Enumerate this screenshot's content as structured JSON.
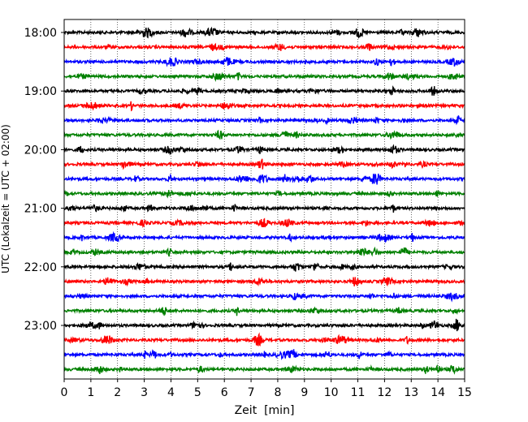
{
  "chart_data": {
    "type": "line",
    "subtype": "helicorder",
    "xlabel": "Zeit  [min]",
    "ylabel": "UTC (Lokalzeit = UTC + 02:00)",
    "xlim": [
      0,
      15
    ],
    "x_ticks": [
      0,
      1,
      2,
      3,
      4,
      5,
      6,
      7,
      8,
      9,
      10,
      11,
      12,
      13,
      14,
      15
    ],
    "x_tick_labels": [
      "0",
      "1",
      "2",
      "3",
      "4",
      "5",
      "6",
      "7",
      "8",
      "9",
      "10",
      "11",
      "12",
      "13",
      "14",
      "15"
    ],
    "grid": "vertical dotted",
    "row_interval_min": 15,
    "y_tick_labels": [
      "18:00",
      "19:00",
      "20:00",
      "21:00",
      "22:00",
      "23:00"
    ],
    "trace_colors": [
      "#000000",
      "#ff0000",
      "#0000ff",
      "#008000"
    ],
    "rows": [
      {
        "start": "18:00",
        "color": "#000000"
      },
      {
        "start": "18:15",
        "color": "#ff0000"
      },
      {
        "start": "18:30",
        "color": "#0000ff"
      },
      {
        "start": "18:45",
        "color": "#008000"
      },
      {
        "start": "19:00",
        "color": "#000000"
      },
      {
        "start": "19:15",
        "color": "#ff0000"
      },
      {
        "start": "19:30",
        "color": "#0000ff"
      },
      {
        "start": "19:45",
        "color": "#008000"
      },
      {
        "start": "20:00",
        "color": "#000000"
      },
      {
        "start": "20:15",
        "color": "#ff0000"
      },
      {
        "start": "20:30",
        "color": "#0000ff"
      },
      {
        "start": "20:45",
        "color": "#008000"
      },
      {
        "start": "21:00",
        "color": "#000000"
      },
      {
        "start": "21:15",
        "color": "#ff0000"
      },
      {
        "start": "21:30",
        "color": "#0000ff"
      },
      {
        "start": "21:45",
        "color": "#008000"
      },
      {
        "start": "22:00",
        "color": "#000000"
      },
      {
        "start": "22:15",
        "color": "#ff0000"
      },
      {
        "start": "22:30",
        "color": "#0000ff"
      },
      {
        "start": "22:45",
        "color": "#008000"
      },
      {
        "start": "23:00",
        "color": "#000000"
      },
      {
        "start": "23:15",
        "color": "#ff0000"
      },
      {
        "start": "23:30",
        "color": "#0000ff"
      },
      {
        "start": "23:45",
        "color": "#008000"
      }
    ]
  }
}
